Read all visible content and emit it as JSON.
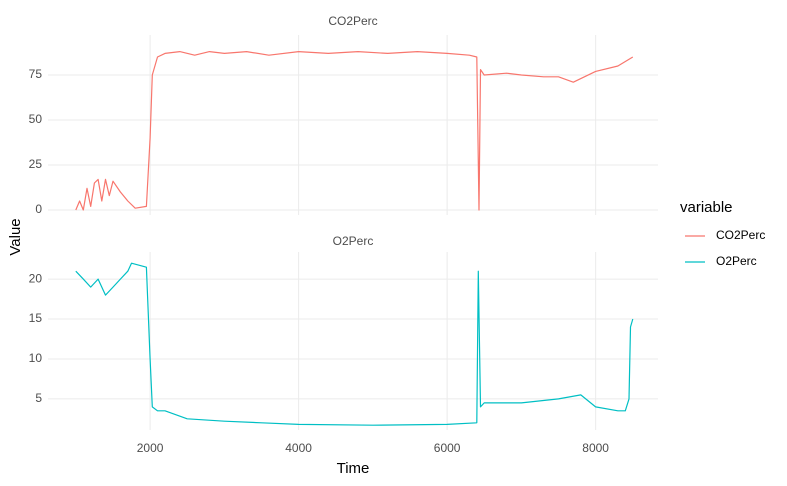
{
  "chart_data": [
    {
      "type": "line",
      "title": "CO2Perc",
      "ylabel": "Value",
      "legend_title": "variable",
      "x": [
        1000,
        1050,
        1100,
        1150,
        1200,
        1250,
        1300,
        1350,
        1400,
        1450,
        1500,
        1600,
        1700,
        1800,
        1950,
        2000,
        2030,
        2100,
        2200,
        2400,
        2600,
        2800,
        3000,
        3300,
        3600,
        4000,
        4400,
        4800,
        5200,
        5600,
        6000,
        6300,
        6400,
        6430,
        6450,
        6500,
        6800,
        7000,
        7300,
        7500,
        7700,
        8000,
        8300,
        8500
      ],
      "series": [
        {
          "name": "CO2Perc",
          "color": "#f8766d",
          "values": [
            0,
            5,
            0,
            12,
            2,
            15,
            17,
            5,
            17,
            8,
            16,
            10,
            5,
            1,
            2,
            40,
            75,
            85,
            87,
            88,
            86,
            88,
            87,
            88,
            86,
            88,
            87,
            88,
            87,
            88,
            87,
            86,
            85,
            0,
            78,
            75,
            76,
            75,
            74,
            74,
            71,
            77,
            80,
            85
          ]
        }
      ],
      "xlim": [
        625,
        8840
      ],
      "xticks": [
        2000,
        4000,
        6000,
        8000
      ],
      "ylim": [
        -2.8,
        97.2
      ],
      "yticks": [
        0,
        25,
        50,
        75
      ],
      "grid": true
    },
    {
      "type": "line",
      "title": "O2Perc",
      "xlabel": "Time",
      "x": [
        1000,
        1100,
        1200,
        1300,
        1400,
        1500,
        1600,
        1700,
        1750,
        1950,
        2000,
        2030,
        2100,
        2200,
        2500,
        3000,
        3500,
        4000,
        5000,
        6000,
        6400,
        6420,
        6450,
        6500,
        7000,
        7500,
        7800,
        8000,
        8300,
        8400,
        8450,
        8470,
        8500
      ],
      "series": [
        {
          "name": "O2Perc",
          "color": "#00bfc4",
          "values": [
            21,
            20,
            19,
            20,
            18,
            19,
            20,
            21,
            22,
            21.5,
            10,
            4,
            3.5,
            3.5,
            2.5,
            2.2,
            2,
            1.8,
            1.7,
            1.8,
            2,
            21,
            4,
            4.5,
            4.5,
            5,
            5.5,
            4,
            3.5,
            3.5,
            5,
            14,
            15
          ]
        }
      ],
      "xlim": [
        625,
        8840
      ],
      "xticks": [
        2000,
        4000,
        6000,
        8000
      ],
      "ylim": [
        1.1,
        23.4
      ],
      "yticks": [
        5,
        10,
        15,
        20
      ],
      "grid": true
    }
  ]
}
